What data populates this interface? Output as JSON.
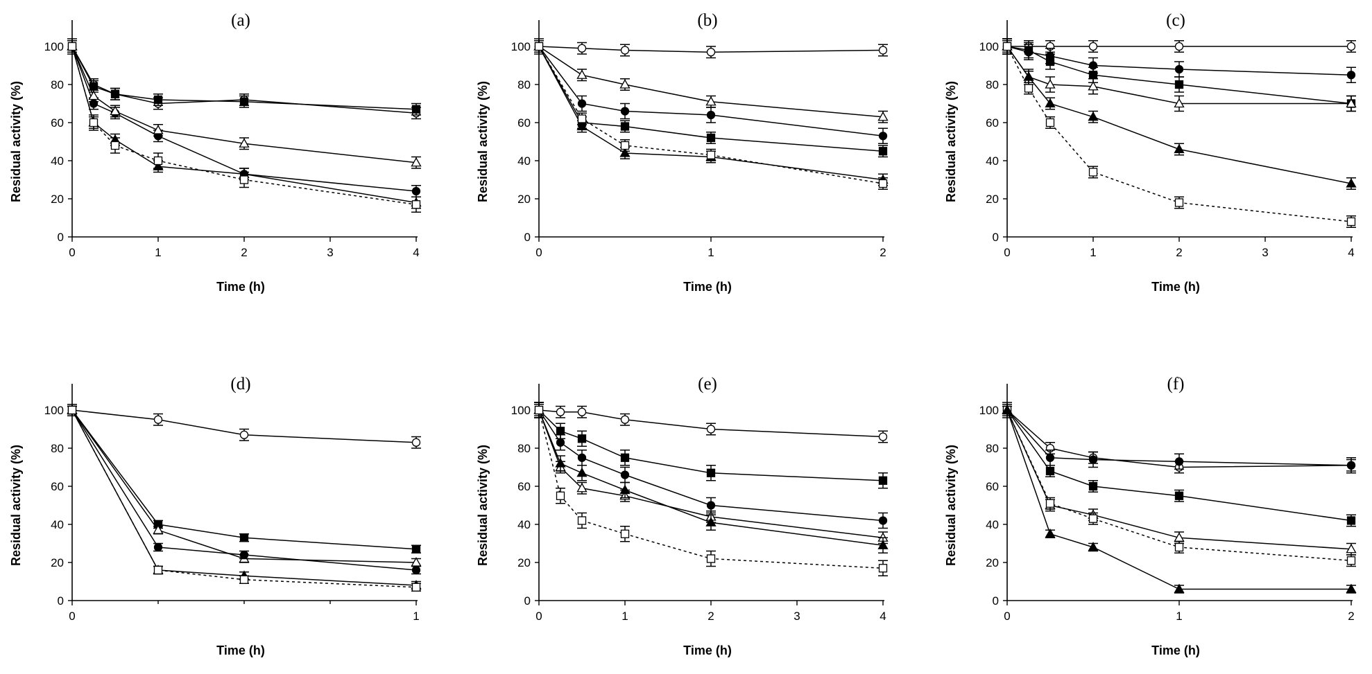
{
  "chart_data": [
    {
      "type": "line",
      "title": "(a)",
      "xlabel": "Time (h)",
      "ylabel": "Residual activity (%)",
      "xlim": [
        0,
        4
      ],
      "ylim": [
        0,
        100
      ],
      "xticks": [
        0,
        1,
        2,
        3,
        4
      ],
      "yticks": [
        0,
        20,
        40,
        60,
        80,
        100
      ],
      "series": [
        {
          "marker": "open-circle",
          "dashed": false,
          "x": [
            0,
            0.25,
            0.5,
            1,
            2,
            4
          ],
          "y": [
            100,
            80,
            75,
            70,
            72,
            65
          ],
          "err": 3
        },
        {
          "marker": "filled-square",
          "dashed": false,
          "x": [
            0,
            0.25,
            0.5,
            1,
            2,
            4
          ],
          "y": [
            100,
            79,
            75,
            72,
            71,
            67
          ],
          "err": 3
        },
        {
          "marker": "filled-circle",
          "dashed": false,
          "x": [
            0,
            0.25,
            0.5,
            1,
            2,
            4
          ],
          "y": [
            100,
            70,
            65,
            53,
            33,
            24
          ],
          "err": 3
        },
        {
          "marker": "open-triangle",
          "dashed": false,
          "x": [
            0,
            0.25,
            0.5,
            1,
            2,
            4
          ],
          "y": [
            100,
            74,
            66,
            56,
            49,
            39
          ],
          "err": 3
        },
        {
          "marker": "filled-triangle",
          "dashed": false,
          "x": [
            0,
            0.25,
            0.5,
            1,
            2,
            4
          ],
          "y": [
            100,
            60,
            51,
            37,
            33,
            18
          ],
          "err": 3
        },
        {
          "marker": "open-square",
          "dashed": true,
          "x": [
            0,
            0.25,
            0.5,
            1,
            2,
            4
          ],
          "y": [
            100,
            60,
            48,
            40,
            30,
            17
          ],
          "err": 4
        }
      ]
    },
    {
      "type": "line",
      "title": "(b)",
      "xlabel": "Time (h)",
      "ylabel": "Residual activity (%)",
      "xlim": [
        0,
        2
      ],
      "ylim": [
        0,
        100
      ],
      "xticks": [
        0,
        1,
        2
      ],
      "yticks": [
        0,
        20,
        40,
        60,
        80,
        100
      ],
      "series": [
        {
          "marker": "open-circle",
          "dashed": false,
          "x": [
            0,
            0.25,
            0.5,
            1,
            2
          ],
          "y": [
            100,
            99,
            98,
            97,
            98
          ],
          "err": 3
        },
        {
          "marker": "open-triangle",
          "dashed": false,
          "x": [
            0,
            0.25,
            0.5,
            1,
            2
          ],
          "y": [
            100,
            85,
            80,
            71,
            63
          ],
          "err": 3
        },
        {
          "marker": "filled-circle",
          "dashed": false,
          "x": [
            0,
            0.25,
            0.5,
            1,
            2
          ],
          "y": [
            100,
            70,
            66,
            64,
            53
          ],
          "err": 4
        },
        {
          "marker": "filled-square",
          "dashed": false,
          "x": [
            0,
            0.25,
            0.5,
            1,
            2
          ],
          "y": [
            100,
            60,
            58,
            52,
            45
          ],
          "err": 3
        },
        {
          "marker": "filled-triangle",
          "dashed": false,
          "x": [
            0,
            0.25,
            0.5,
            1,
            2
          ],
          "y": [
            100,
            58,
            44,
            42,
            30
          ],
          "err": 3
        },
        {
          "marker": "open-square",
          "dashed": true,
          "x": [
            0,
            0.25,
            0.5,
            1,
            2
          ],
          "y": [
            100,
            62,
            48,
            43,
            28
          ],
          "err": 3
        }
      ]
    },
    {
      "type": "line",
      "title": "(c)",
      "xlabel": "Time (h)",
      "ylabel": "Residual activity (%)",
      "xlim": [
        0,
        4
      ],
      "ylim": [
        0,
        100
      ],
      "xticks": [
        0,
        1,
        2,
        3,
        4
      ],
      "yticks": [
        0,
        20,
        40,
        60,
        80,
        100
      ],
      "series": [
        {
          "marker": "open-circle",
          "dashed": false,
          "x": [
            0,
            0.25,
            0.5,
            1,
            2,
            4
          ],
          "y": [
            100,
            100,
            100,
            100,
            100,
            100
          ],
          "err": 3
        },
        {
          "marker": "filled-circle",
          "dashed": false,
          "x": [
            0,
            0.25,
            0.5,
            1,
            2,
            4
          ],
          "y": [
            100,
            97,
            95,
            90,
            88,
            85
          ],
          "err": 4
        },
        {
          "marker": "filled-square",
          "dashed": false,
          "x": [
            0,
            0.25,
            0.5,
            1,
            2,
            4
          ],
          "y": [
            100,
            98,
            92,
            85,
            80,
            70
          ],
          "err": 4
        },
        {
          "marker": "open-triangle",
          "dashed": false,
          "x": [
            0,
            0.25,
            0.5,
            1,
            2,
            4
          ],
          "y": [
            100,
            84,
            80,
            79,
            70,
            70
          ],
          "err": 4
        },
        {
          "marker": "filled-triangle",
          "dashed": false,
          "x": [
            0,
            0.25,
            0.5,
            1,
            2,
            4
          ],
          "y": [
            100,
            84,
            70,
            63,
            46,
            28
          ],
          "err": 3
        },
        {
          "marker": "open-square",
          "dashed": true,
          "x": [
            0,
            0.25,
            0.5,
            1,
            2,
            4
          ],
          "y": [
            100,
            78,
            60,
            34,
            18,
            8
          ],
          "err": 3
        }
      ]
    },
    {
      "type": "line",
      "title": "(d)",
      "xlabel": "Time (h)",
      "ylabel": "Residual activity (%)",
      "xlim": [
        0,
        1
      ],
      "ylim": [
        0,
        100
      ],
      "xticks": [
        0,
        1
      ],
      "minor_xticks": [
        0.25,
        0.5,
        0.75
      ],
      "yticks": [
        0,
        20,
        40,
        60,
        80,
        100
      ],
      "series": [
        {
          "marker": "open-circle",
          "dashed": false,
          "x": [
            0,
            0.25,
            0.5,
            1
          ],
          "y": [
            100,
            95,
            87,
            83
          ],
          "err": 3
        },
        {
          "marker": "filled-square",
          "dashed": false,
          "x": [
            0,
            0.25,
            0.5,
            1
          ],
          "y": [
            100,
            40,
            33,
            27
          ],
          "err": 2
        },
        {
          "marker": "open-triangle",
          "dashed": false,
          "x": [
            0,
            0.25,
            0.5,
            1
          ],
          "y": [
            100,
            37,
            22,
            20
          ],
          "err": 2
        },
        {
          "marker": "filled-circle",
          "dashed": false,
          "x": [
            0,
            0.25,
            0.5,
            1
          ],
          "y": [
            100,
            28,
            24,
            16
          ],
          "err": 2
        },
        {
          "marker": "filled-triangle",
          "dashed": false,
          "x": [
            0,
            0.25,
            0.5,
            1
          ],
          "y": [
            100,
            16,
            13,
            8
          ],
          "err": 2
        },
        {
          "marker": "open-square",
          "dashed": true,
          "x": [
            0,
            0.25,
            0.5,
            1
          ],
          "y": [
            100,
            16,
            11,
            7
          ],
          "err": 2
        }
      ]
    },
    {
      "type": "line",
      "title": "(e)",
      "xlabel": "Time (h)",
      "ylabel": "Residual activity (%)",
      "xlim": [
        0,
        4
      ],
      "ylim": [
        0,
        100
      ],
      "xticks": [
        0,
        1,
        2,
        3,
        4
      ],
      "yticks": [
        0,
        20,
        40,
        60,
        80,
        100
      ],
      "series": [
        {
          "marker": "open-circle",
          "dashed": false,
          "x": [
            0,
            0.25,
            0.5,
            1,
            2,
            4
          ],
          "y": [
            100,
            99,
            99,
            95,
            90,
            86
          ],
          "err": 3
        },
        {
          "marker": "filled-square",
          "dashed": false,
          "x": [
            0,
            0.25,
            0.5,
            1,
            2,
            4
          ],
          "y": [
            100,
            89,
            85,
            75,
            67,
            63
          ],
          "err": 4
        },
        {
          "marker": "filled-circle",
          "dashed": false,
          "x": [
            0,
            0.25,
            0.5,
            1,
            2,
            4
          ],
          "y": [
            100,
            83,
            75,
            66,
            50,
            42
          ],
          "err": 4
        },
        {
          "marker": "open-triangle",
          "dashed": false,
          "x": [
            0,
            0.25,
            0.5,
            1,
            2,
            4
          ],
          "y": [
            100,
            70,
            59,
            55,
            44,
            33
          ],
          "err": 3
        },
        {
          "marker": "filled-triangle",
          "dashed": false,
          "x": [
            0,
            0.25,
            0.5,
            1,
            2,
            4
          ],
          "y": [
            100,
            72,
            67,
            58,
            41,
            29
          ],
          "err": 4
        },
        {
          "marker": "open-square",
          "dashed": true,
          "x": [
            0,
            0.25,
            0.5,
            1,
            2,
            4
          ],
          "y": [
            100,
            55,
            42,
            35,
            22,
            17
          ],
          "err": 4
        }
      ]
    },
    {
      "type": "line",
      "title": "(f)",
      "xlabel": "Time (h)",
      "ylabel": "Residual activity (%)",
      "xlim": [
        0,
        2
      ],
      "ylim": [
        0,
        100
      ],
      "xticks": [
        0,
        1,
        2
      ],
      "yticks": [
        0,
        20,
        40,
        60,
        80,
        100
      ],
      "series": [
        {
          "marker": "open-circle",
          "dashed": false,
          "x": [
            0,
            0.25,
            0.5,
            1,
            2
          ],
          "y": [
            100,
            80,
            75,
            70,
            71
          ],
          "err": 3
        },
        {
          "marker": "filled-circle",
          "dashed": false,
          "x": [
            0,
            0.25,
            0.5,
            1,
            2
          ],
          "y": [
            100,
            75,
            74,
            73,
            71
          ],
          "err": 4
        },
        {
          "marker": "filled-square",
          "dashed": false,
          "x": [
            0,
            0.25,
            0.5,
            1,
            2
          ],
          "y": [
            100,
            68,
            60,
            55,
            42
          ],
          "err": 3
        },
        {
          "marker": "open-triangle",
          "dashed": false,
          "x": [
            0,
            0.25,
            0.5,
            1,
            2
          ],
          "y": [
            100,
            50,
            45,
            33,
            27
          ],
          "err": 3
        },
        {
          "marker": "open-square",
          "dashed": true,
          "x": [
            0,
            0.25,
            0.5,
            1,
            2
          ],
          "y": [
            100,
            51,
            43,
            28,
            21
          ],
          "err": 3
        },
        {
          "marker": "filled-triangle",
          "dashed": false,
          "x": [
            0,
            0.25,
            0.5,
            1,
            2
          ],
          "y": [
            100,
            35,
            28,
            6,
            6
          ],
          "err": 2
        }
      ]
    }
  ]
}
